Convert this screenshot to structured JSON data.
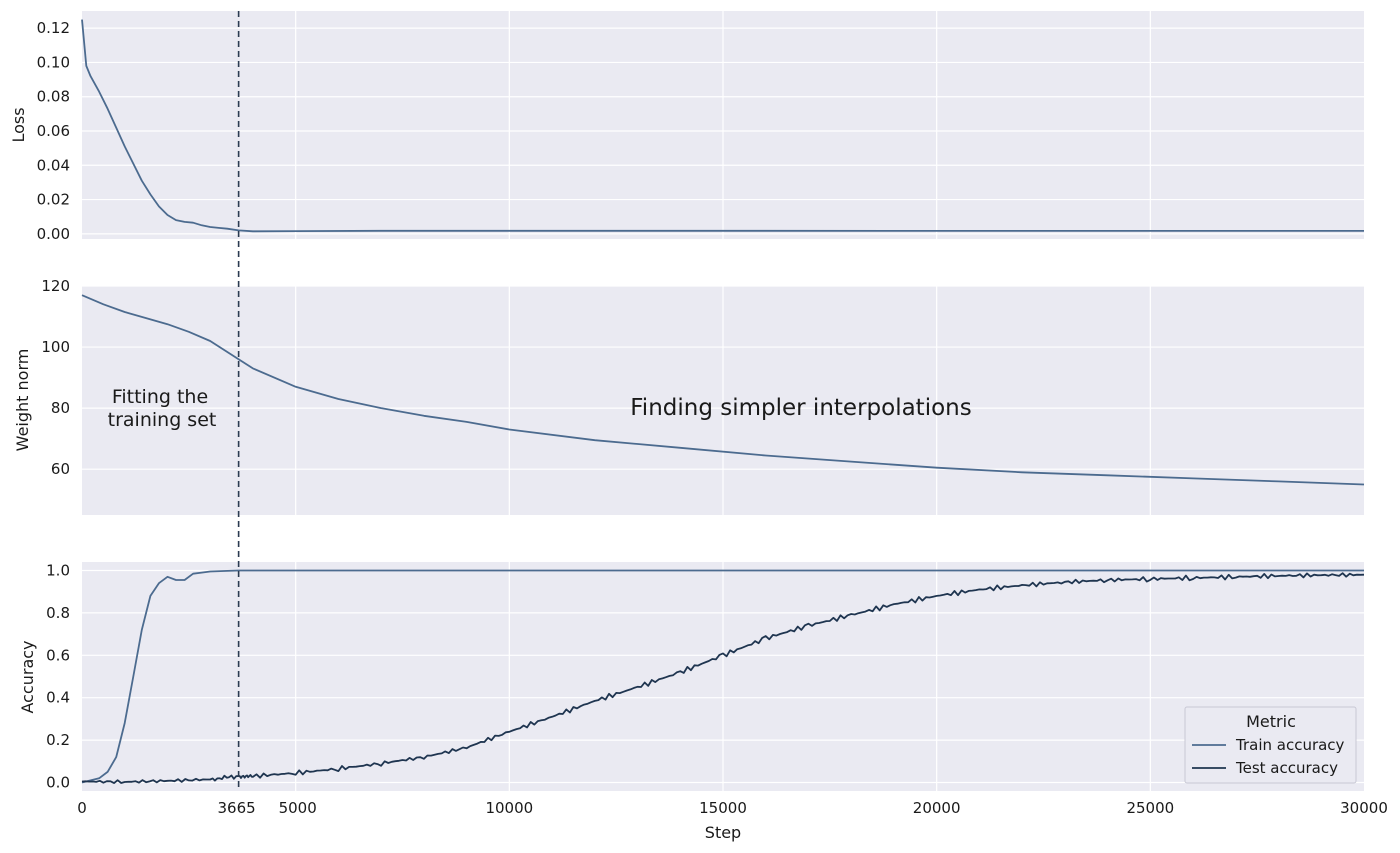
{
  "colors": {
    "panel_bg": "#eaeaf2",
    "grid": "#ffffff",
    "train": "#4c6b8f",
    "test": "#1f3550",
    "vline": "#2a3a50",
    "text": "#1a1a1a"
  },
  "chart_data": [
    {
      "type": "line",
      "panel": "loss",
      "ylabel": "Loss",
      "xlabel": "",
      "xlim": [
        0,
        30000
      ],
      "ylim": [
        -0.003,
        0.13
      ],
      "yticks": [
        "0.00",
        "0.02",
        "0.04",
        "0.06",
        "0.08",
        "0.10",
        "0.12"
      ],
      "grid": true,
      "series": [
        {
          "x": [
            0,
            100,
            200,
            400,
            600,
            800,
            1000,
            1200,
            1400,
            1600,
            1800,
            2000,
            2200,
            2400,
            2600,
            2800,
            3000,
            3200,
            3400,
            3665,
            4000,
            5000,
            7000,
            10000,
            15000,
            20000,
            25000,
            30000
          ],
          "values": [
            0.125,
            0.098,
            0.092,
            0.083,
            0.073,
            0.062,
            0.051,
            0.041,
            0.031,
            0.023,
            0.016,
            0.011,
            0.008,
            0.007,
            0.0065,
            0.005,
            0.004,
            0.0035,
            0.003,
            0.002,
            0.0015,
            0.0016,
            0.0018,
            0.0018,
            0.0018,
            0.0017,
            0.0017,
            0.0017
          ]
        }
      ]
    },
    {
      "type": "line",
      "panel": "weight-norm",
      "ylabel": "Weight norm",
      "xlabel": "",
      "xlim": [
        0,
        30000
      ],
      "ylim": [
        45,
        120
      ],
      "yticks": [
        "60",
        "80",
        "100",
        "120"
      ],
      "grid": true,
      "annotations": [
        "Fitting the",
        "training set",
        "Finding simpler interpolations"
      ],
      "series": [
        {
          "x": [
            0,
            500,
            1000,
            1500,
            2000,
            2500,
            3000,
            3665,
            4000,
            5000,
            6000,
            7000,
            8000,
            9000,
            10000,
            12000,
            14000,
            16000,
            18000,
            20000,
            22000,
            24000,
            26000,
            28000,
            30000
          ],
          "values": [
            117,
            114,
            111.5,
            109.5,
            107.5,
            105,
            102,
            96,
            93,
            87,
            83,
            80,
            77.5,
            75.5,
            73,
            69.5,
            67,
            64.5,
            62.5,
            60.5,
            59,
            58,
            57,
            56,
            55
          ]
        }
      ]
    },
    {
      "type": "line",
      "panel": "accuracy",
      "ylabel": "Accuracy",
      "xlabel": "Step",
      "xlim": [
        0,
        30000
      ],
      "ylim": [
        -0.04,
        1.04
      ],
      "yticks": [
        "0.0",
        "0.2",
        "0.4",
        "0.6",
        "0.8",
        "1.0"
      ],
      "xticks": [
        "0",
        "3665",
        "5000",
        "10000",
        "15000",
        "20000",
        "25000",
        "30000"
      ],
      "vline_x": 3665,
      "grid": true,
      "legend": {
        "title": "Metric",
        "placement": "bottom-right"
      },
      "series": [
        {
          "name": "Train accuracy",
          "x": [
            0,
            400,
            600,
            800,
            1000,
            1200,
            1400,
            1600,
            1800,
            2000,
            2200,
            2400,
            2600,
            2800,
            3000,
            3400,
            3665,
            4000,
            6000,
            10000,
            20000,
            30000
          ],
          "values": [
            0.0,
            0.02,
            0.05,
            0.12,
            0.28,
            0.5,
            0.72,
            0.88,
            0.94,
            0.97,
            0.955,
            0.955,
            0.985,
            0.99,
            0.995,
            0.998,
            1.0,
            1.0,
            1.0,
            1.0,
            1.0,
            1.0
          ]
        },
        {
          "name": "Test accuracy",
          "x": [
            0,
            1000,
            2000,
            3000,
            3665,
            4000,
            5000,
            6000,
            7000,
            8000,
            9000,
            10000,
            11000,
            12000,
            13000,
            14000,
            15000,
            16000,
            17000,
            18000,
            19000,
            20000,
            21000,
            22000,
            23000,
            24000,
            25000,
            26000,
            27000,
            28000,
            29000,
            30000
          ],
          "values": [
            0.005,
            0.003,
            0.008,
            0.015,
            0.03,
            0.03,
            0.045,
            0.065,
            0.09,
            0.12,
            0.165,
            0.24,
            0.31,
            0.385,
            0.45,
            0.52,
            0.6,
            0.68,
            0.74,
            0.79,
            0.84,
            0.88,
            0.91,
            0.93,
            0.945,
            0.955,
            0.96,
            0.965,
            0.97,
            0.975,
            0.978,
            0.98
          ]
        }
      ]
    }
  ]
}
